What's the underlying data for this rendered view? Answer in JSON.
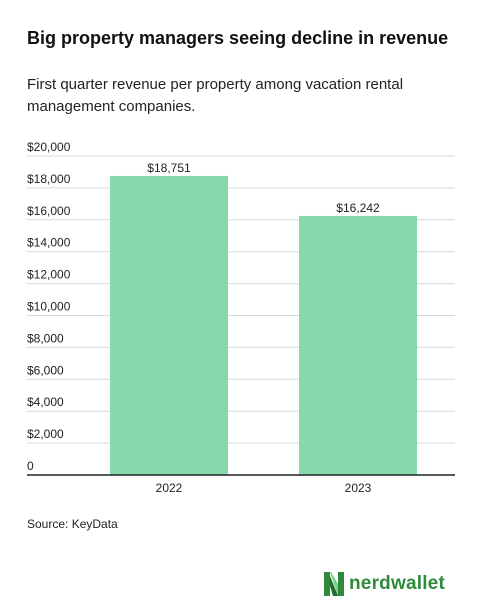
{
  "title": "Big property managers seeing decline in revenue",
  "subtitle": "First quarter revenue per property among vacation rental management companies.",
  "source": "Source: KeyData",
  "brand": {
    "name": "nerdwallet",
    "logo_icon": "nerdwallet-n-icon",
    "color": "#2f8a3b"
  },
  "colors": {
    "bar": "#86d9aa",
    "grid": "#d9d9d9",
    "axis": "#222222"
  },
  "chart_data": {
    "type": "bar",
    "categories": [
      "2022",
      "2023"
    ],
    "values": [
      18751,
      16242
    ],
    "data_labels": [
      "$18,751",
      "$16,242"
    ],
    "ylim": [
      0,
      20000
    ],
    "yticks": [
      0,
      2000,
      4000,
      6000,
      8000,
      10000,
      12000,
      14000,
      16000,
      18000,
      20000
    ],
    "ytick_labels": [
      "0",
      "$2,000",
      "$4,000",
      "$6,000",
      "$8,000",
      "$10,000",
      "$12,000",
      "$14,000",
      "$16,000",
      "$18,000",
      "$20,000"
    ],
    "grid": true,
    "legend": "none"
  }
}
